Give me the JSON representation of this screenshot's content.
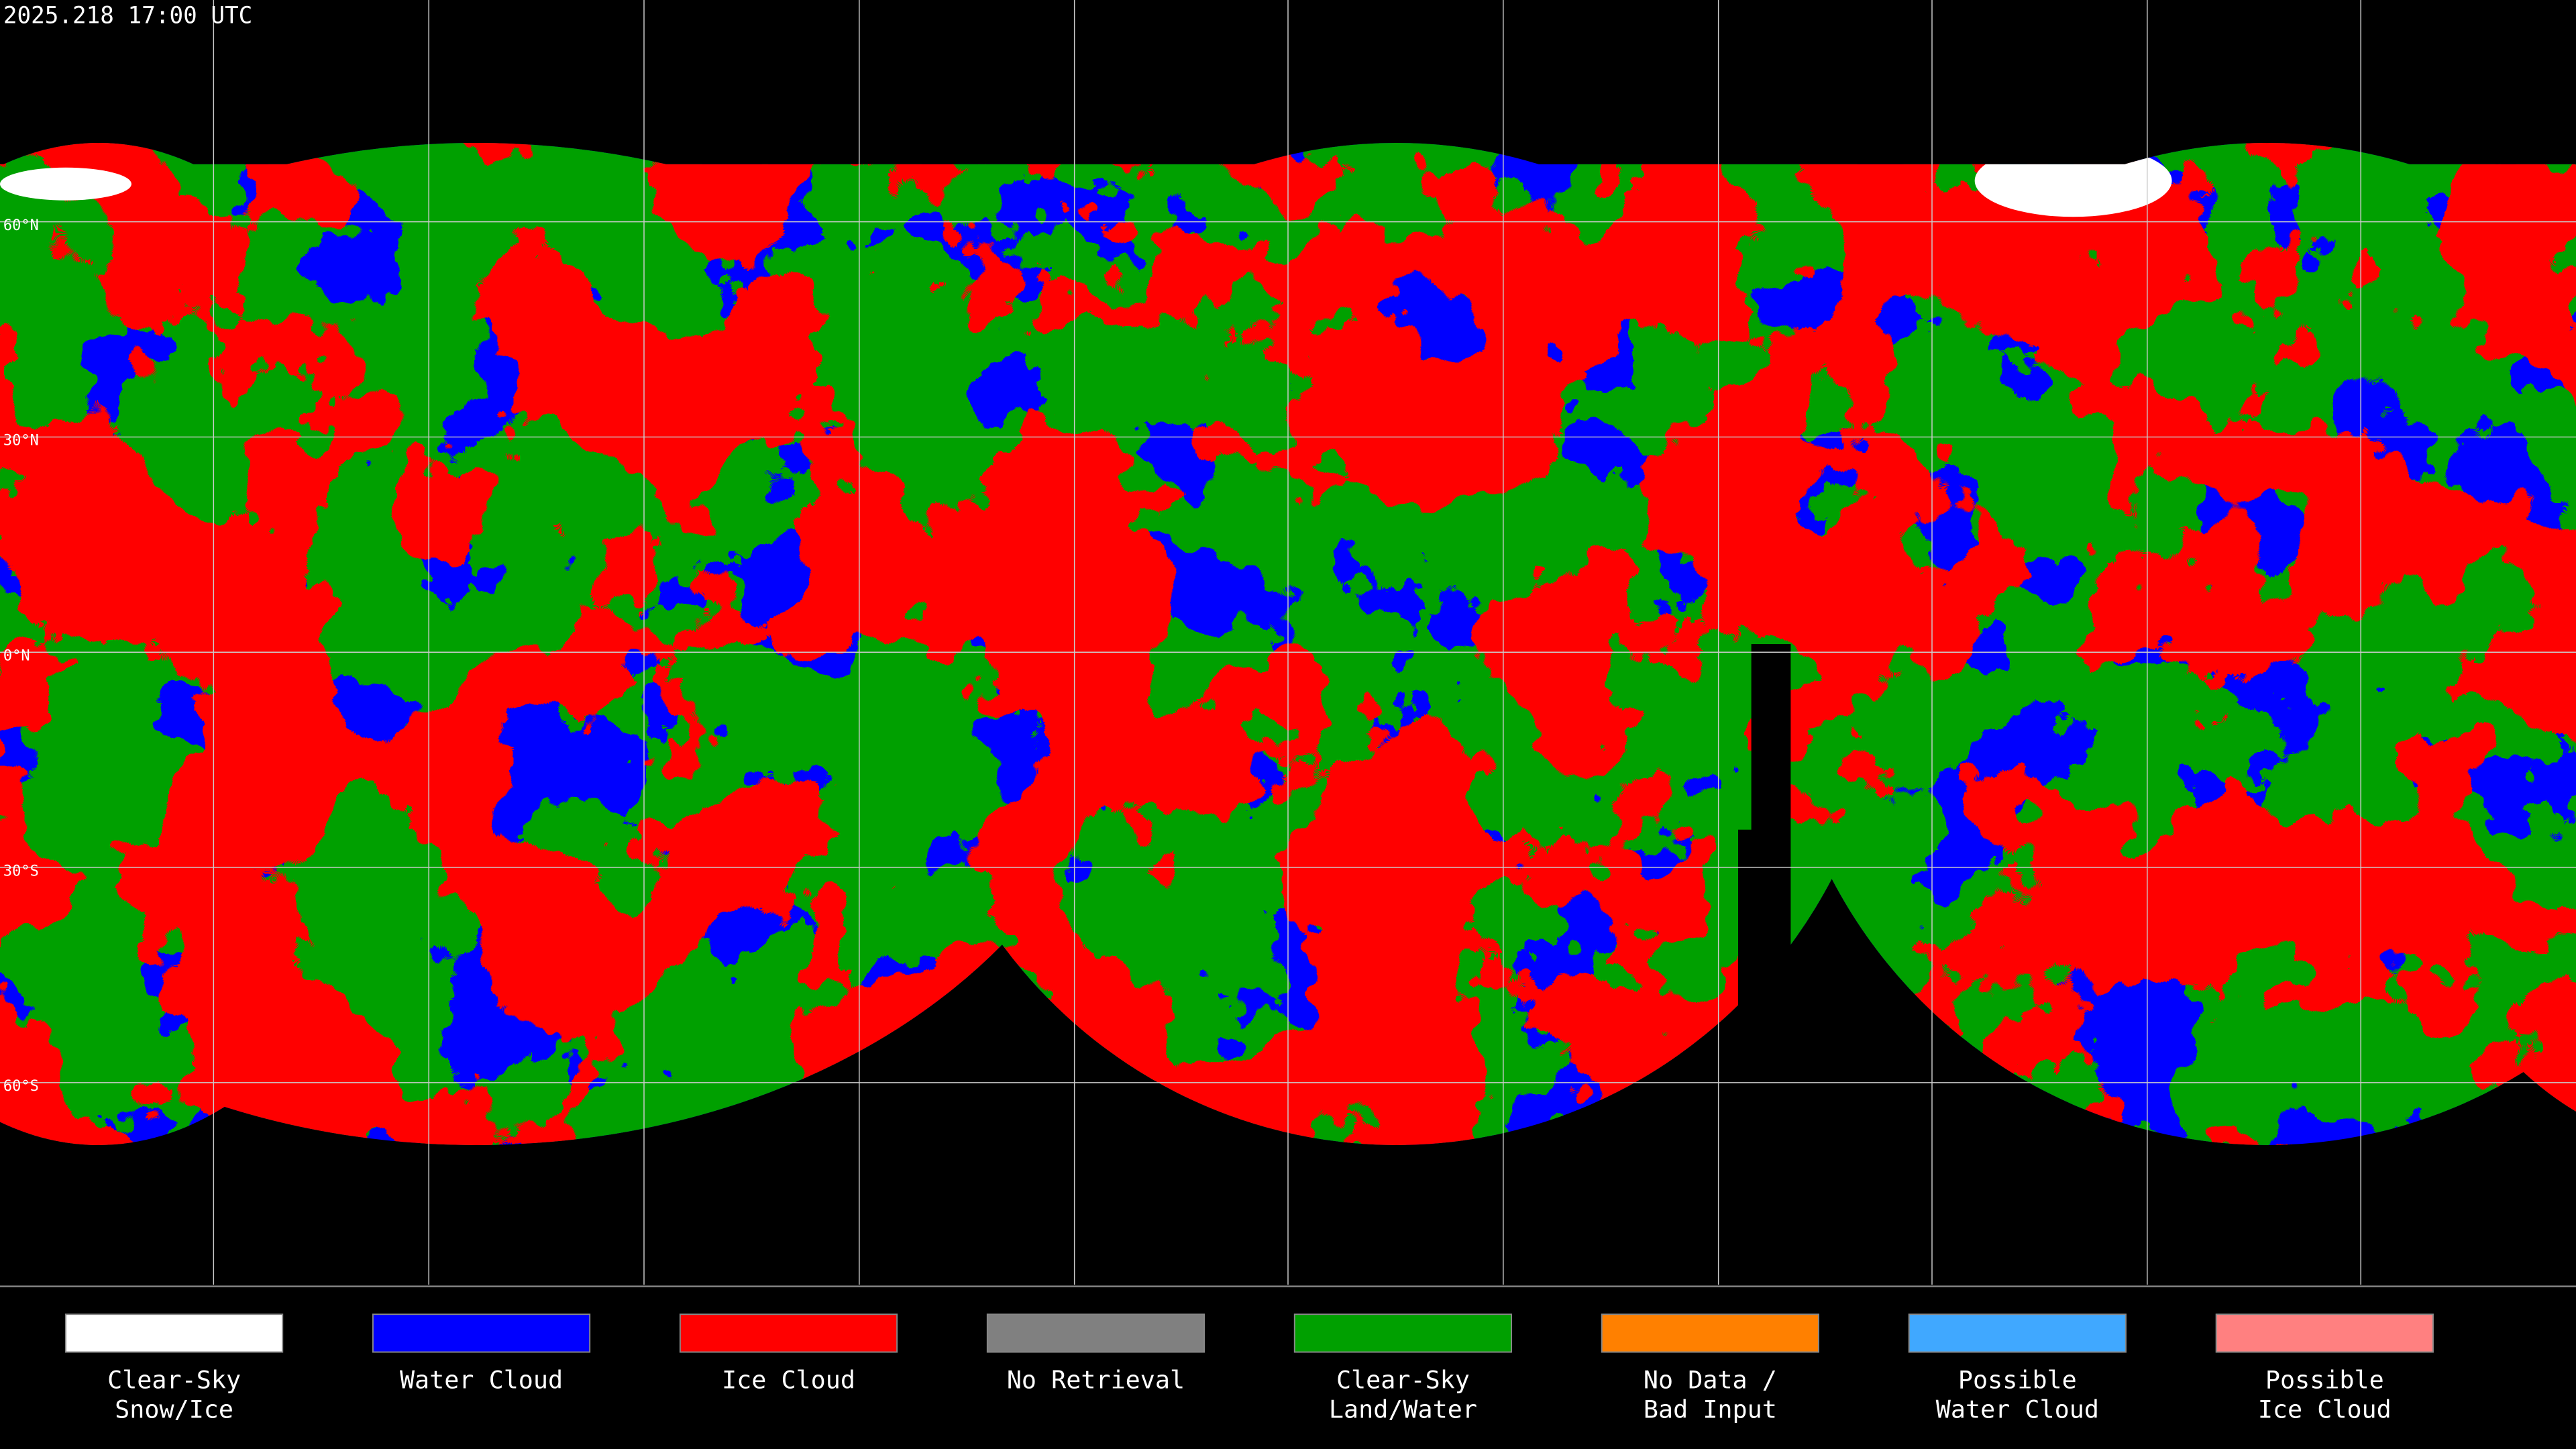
{
  "title": "2025.218 17:00 UTC",
  "map": {
    "latitude_labels": [
      "60°N",
      "30°N",
      "0°N",
      "30°S",
      "60°S"
    ]
  },
  "legend": {
    "items": [
      {
        "label": [
          "Clear-Sky",
          "Snow/Ice"
        ],
        "color": "#ffffff"
      },
      {
        "label": [
          "Water Cloud"
        ],
        "color": "#0000ff"
      },
      {
        "label": [
          "Ice Cloud"
        ],
        "color": "#ff0000"
      },
      {
        "label": [
          "No Retrieval"
        ],
        "color": "#808080"
      },
      {
        "label": [
          "Clear-Sky",
          "Land/Water"
        ],
        "color": "#00a000"
      },
      {
        "label": [
          "No Data /",
          "Bad Input"
        ],
        "color": "#ff8000"
      },
      {
        "label": [
          "Possible",
          "Water Cloud"
        ],
        "color": "#40a8ff"
      },
      {
        "label": [
          "Possible",
          "Ice Cloud"
        ],
        "color": "#ff8080"
      }
    ]
  }
}
